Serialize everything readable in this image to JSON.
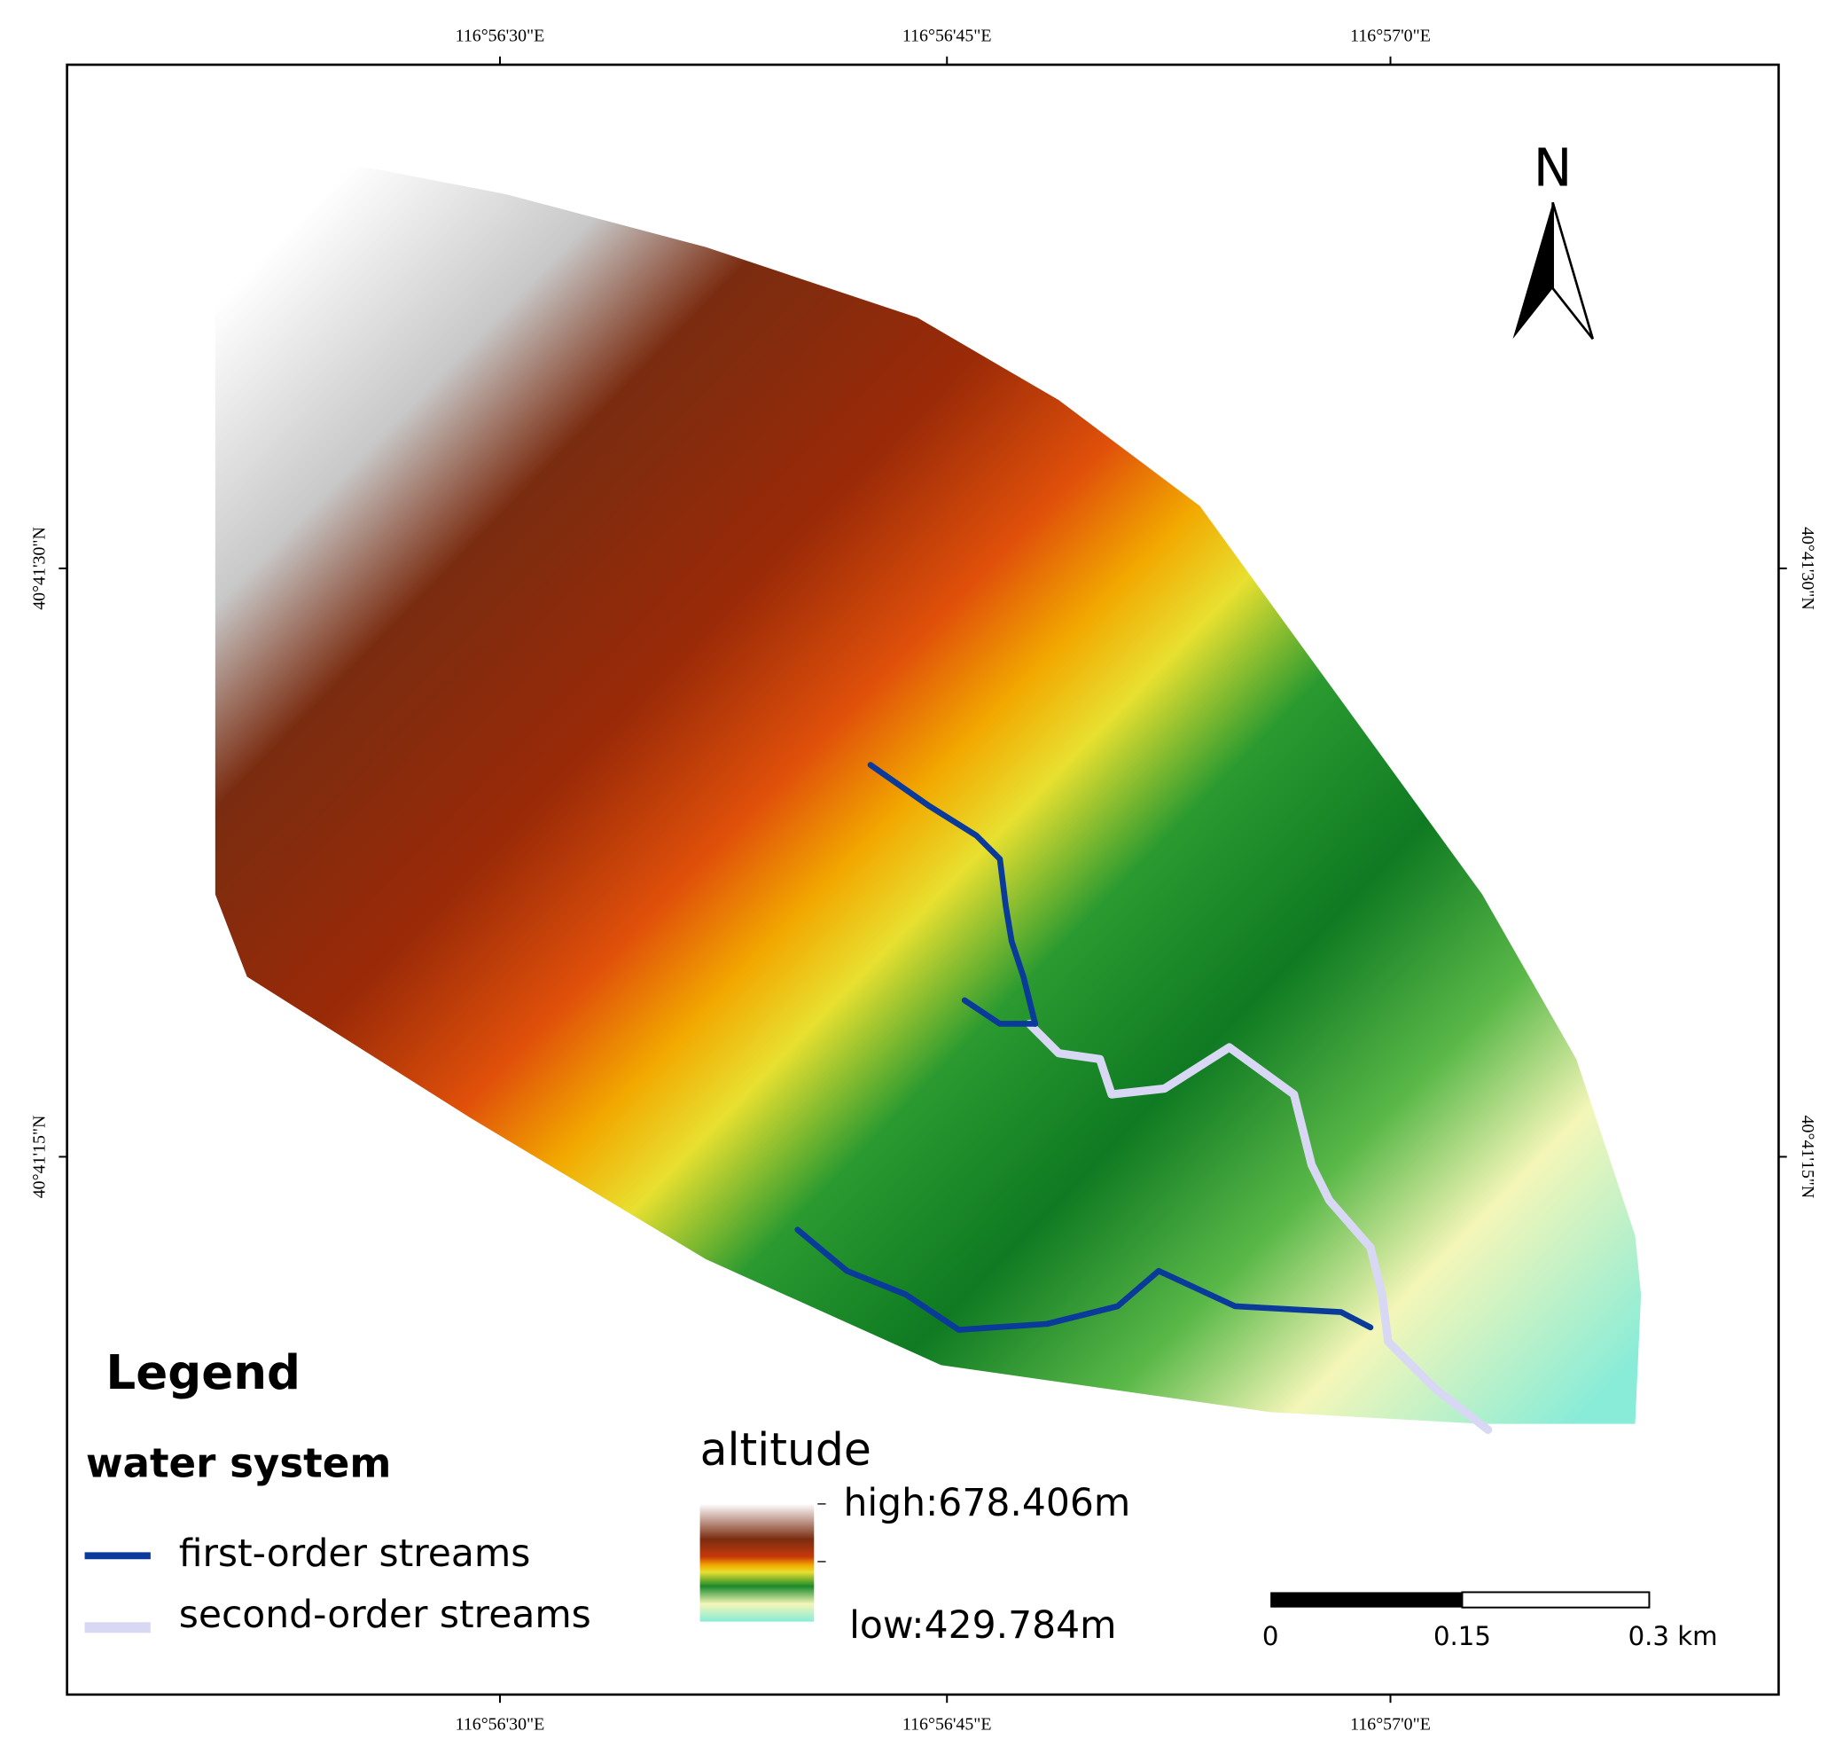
{
  "map": {
    "top_labels": [
      "116°56'30\"E",
      "116°56'45\"E",
      "116°57'0\"E"
    ],
    "bottom_labels": [
      "116°56'30\"E",
      "116°56'45\"E",
      "116°57'0\"E"
    ],
    "left_labels": [
      "40°41'30\"N",
      "40°41'15\"N"
    ],
    "right_labels": [
      "40°41'30\"N",
      "40°41'15\"N"
    ],
    "north": "N",
    "legend": {
      "title": "Legend",
      "water_title": "water system",
      "streams": [
        "first-order streams",
        "second-order streams"
      ],
      "altitude_title": "altitude",
      "high": "high:678.406m",
      "low": "low:429.784m"
    },
    "scale_labels": [
      "0",
      "0.15",
      "0.3 km"
    ]
  }
}
